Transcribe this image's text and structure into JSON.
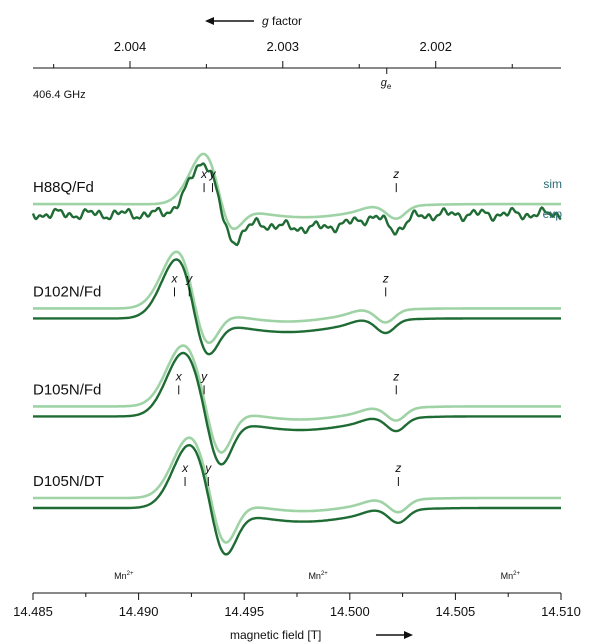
{
  "chart_data": {
    "type": "line",
    "frequency_label": "406.4 GHz",
    "top_axis": {
      "title_italic": "g",
      "title_rest": " factor",
      "ticks": [
        {
          "label": "2.004",
          "value": 2.004
        },
        {
          "label": "2.003",
          "value": 2.003
        },
        {
          "label": "2.002",
          "value": 2.002
        }
      ],
      "minor_ticks": [
        2.0045,
        2.0035,
        2.0025,
        2.0015
      ],
      "ge_label": "g",
      "ge_sub": "e",
      "ge_value": 2.00232
    },
    "bottom_axis": {
      "title": "magnetic field [T]",
      "xlim": [
        14.485,
        14.51
      ],
      "ticks": [
        {
          "label": "14.485",
          "value": 14.485
        },
        {
          "label": "14.490",
          "value": 14.49
        },
        {
          "label": "14.495",
          "value": 14.495
        },
        {
          "label": "14.500",
          "value": 14.5
        },
        {
          "label": "14.505",
          "value": 14.505
        },
        {
          "label": "14.510",
          "value": 14.51
        }
      ],
      "minor_ticks": [
        14.4875,
        14.4925,
        14.4975,
        14.5025,
        14.5075
      ],
      "mn_markers": [
        {
          "label": "Mn",
          "sup": "2+",
          "value": 14.4893
        },
        {
          "label": "Mn",
          "sup": "2+",
          "value": 14.4985
        },
        {
          "label": "Mn",
          "sup": "2+",
          "value": 14.5076
        }
      ]
    },
    "legend": {
      "sim": "sim",
      "exp": "exp"
    },
    "colors": {
      "sim": "#9fd3a6",
      "exp": "#1f6b34",
      "axis": "#111111"
    },
    "series": [
      {
        "name": "H88Q/Fd",
        "baseline": 0.93,
        "g_positions": [
          {
            "label": "x",
            "value": 14.4931
          },
          {
            "label": "y",
            "value": 14.4935
          },
          {
            "label": "z",
            "value": 14.5022
          }
        ],
        "noisy": true
      },
      {
        "name": "D102N/Fd",
        "baseline": 0.6,
        "g_positions": [
          {
            "label": "x",
            "value": 14.4917
          },
          {
            "label": "y",
            "value": 14.4924
          },
          {
            "label": "z",
            "value": 14.5017
          }
        ],
        "noisy": false
      },
      {
        "name": "D105N/Fd",
        "baseline": 0.29,
        "g_positions": [
          {
            "label": "x",
            "value": 14.4919
          },
          {
            "label": "y",
            "value": 14.4931
          },
          {
            "label": "z",
            "value": 14.5022
          }
        ],
        "noisy": false
      },
      {
        "name": "D105N/DT",
        "baseline": 0.0,
        "g_positions": [
          {
            "label": "x",
            "value": 14.4922
          },
          {
            "label": "y",
            "value": 14.4933
          },
          {
            "label": "z",
            "value": 14.5023
          }
        ],
        "noisy": false
      }
    ]
  }
}
